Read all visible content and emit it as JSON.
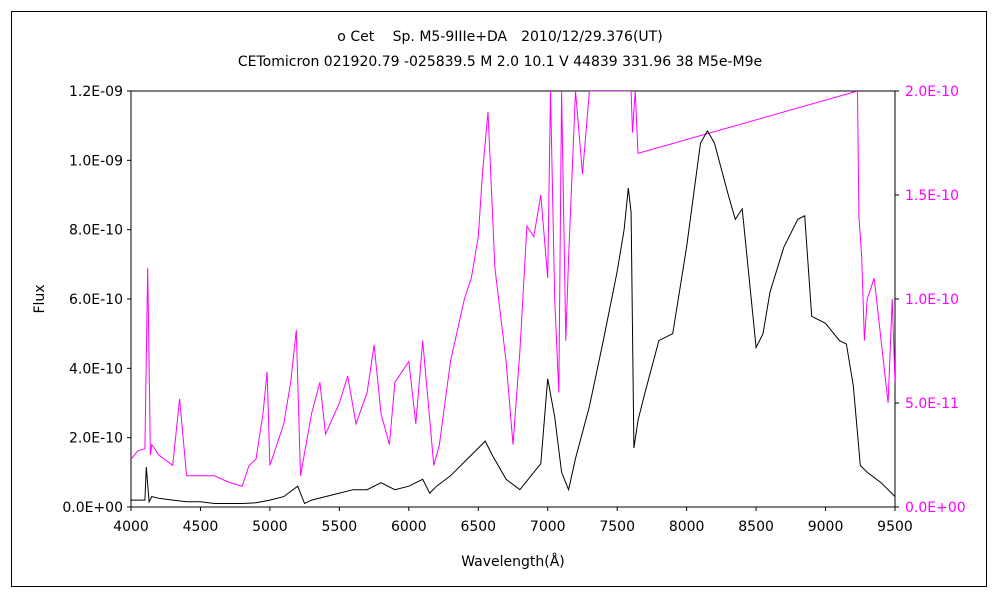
{
  "chart_data": {
    "type": "line",
    "title": "ο Cet　 Sp. M5-9IIIe+DA　2010/12/29.376(UT)",
    "subtitle": "CETomicron 021920.79 -025839.5 M 2.0 10.1 V 44839 331.96 38 M5e-M9e",
    "xlabel": "Wavelength(Å)",
    "ylabel": "Flux",
    "xlim": [
      4000,
      9500
    ],
    "ylim": [
      0,
      1.2e-09
    ],
    "y2lim": [
      0,
      2e-10
    ],
    "x_ticks": [
      4000,
      4500,
      5000,
      5500,
      6000,
      6500,
      7000,
      7500,
      8000,
      8500,
      9000,
      9500
    ],
    "x_tick_labels": [
      "4000",
      "4500",
      "5000",
      "5500",
      "6000",
      "6500",
      "7000",
      "7500",
      "8000",
      "8500",
      "9000",
      "9500"
    ],
    "y_ticks": [
      0,
      2e-10,
      4e-10,
      6e-10,
      8e-10,
      1e-09,
      1.2e-09
    ],
    "y_tick_labels": [
      "0.0E+00",
      "2.0E-10",
      "4.0E-10",
      "6.0E-10",
      "8.0E-10",
      "1.0E-09",
      "1.2E-09"
    ],
    "y2_ticks": [
      0,
      5e-11,
      1e-10,
      1.5e-10,
      2e-10
    ],
    "y2_tick_labels": [
      "0.0E+00",
      "5.0E-11",
      "1.0E-10",
      "1.5E-10",
      "2.0E-10"
    ],
    "grid": false,
    "legend": "none",
    "series": [
      {
        "axis": "left",
        "color": "#000000",
        "x": [
          4000,
          4100,
          4110,
          4130,
          4150,
          4200,
          4300,
          4400,
          4500,
          4600,
          4700,
          4800,
          4900,
          5000,
          5100,
          5200,
          5250,
          5300,
          5400,
          5500,
          5600,
          5700,
          5800,
          5900,
          6000,
          6100,
          6150,
          6200,
          6300,
          6400,
          6500,
          6550,
          6600,
          6700,
          6800,
          6900,
          6950,
          7000,
          7050,
          7100,
          7150,
          7200,
          7300,
          7400,
          7500,
          7550,
          7580,
          7600,
          7620,
          7650,
          7700,
          7800,
          7900,
          8000,
          8100,
          8150,
          8200,
          8300,
          8350,
          8400,
          8500,
          8550,
          8600,
          8700,
          8800,
          8850,
          8900,
          9000,
          9100,
          9150,
          9200,
          9250,
          9300,
          9400,
          9500
        ],
        "y": [
          2e-11,
          2e-11,
          1.15e-10,
          1.5e-11,
          3e-11,
          2.5e-11,
          2e-11,
          1.5e-11,
          1.5e-11,
          1e-11,
          1e-11,
          1e-11,
          1.2e-11,
          2e-11,
          3e-11,
          6e-11,
          1e-11,
          2e-11,
          3e-11,
          4e-11,
          5e-11,
          5e-11,
          7e-11,
          5e-11,
          6e-11,
          8e-11,
          4e-11,
          6e-11,
          9e-11,
          1.3e-10,
          1.7e-10,
          1.9e-10,
          1.5e-10,
          8e-11,
          5e-11,
          1e-10,
          1.25e-10,
          3.7e-10,
          2.6e-10,
          1e-10,
          5e-11,
          1.4e-10,
          2.9e-10,
          4.8e-10,
          6.8e-10,
          8e-10,
          9.2e-10,
          8.5e-10,
          1.7e-10,
          2.5e-10,
          3.3e-10,
          4.8e-10,
          5e-10,
          7.5e-10,
          1.05e-09,
          1.085e-09,
          1.05e-09,
          9e-10,
          8.3e-10,
          8.6e-10,
          4.6e-10,
          5e-10,
          6.2e-10,
          7.5e-10,
          8.3e-10,
          8.4e-10,
          5.5e-10,
          5.3e-10,
          4.8e-10,
          4.7e-10,
          3.5e-10,
          1.2e-10,
          1e-10,
          7e-11,
          3e-11
        ]
      },
      {
        "axis": "right",
        "color": "#ff00ff",
        "x": [
          4000,
          4050,
          4100,
          4120,
          4140,
          4150,
          4200,
          4300,
          4350,
          4400,
          4500,
          4600,
          4700,
          4800,
          4850,
          4900,
          4950,
          4980,
          5000,
          5050,
          5100,
          5150,
          5190,
          5220,
          5300,
          5360,
          5400,
          5500,
          5560,
          5620,
          5700,
          5750,
          5800,
          5860,
          5900,
          5950,
          6000,
          6050,
          6100,
          6180,
          6220,
          6300,
          6400,
          6450,
          6500,
          6530,
          6570,
          6620,
          6700,
          6750,
          6800,
          6850,
          6900,
          6950,
          7000,
          7020,
          7050,
          7080,
          7100,
          7130,
          7150,
          7200,
          7250,
          7300,
          7350,
          7400,
          7450,
          7500,
          7550,
          7600,
          7610,
          7630,
          7650,
          9230,
          9240,
          9260,
          9280,
          9300,
          9350,
          9400,
          9450,
          9480,
          9500
        ],
        "y": [
          2.3e-11,
          2.7e-11,
          2.8e-11,
          1.15e-10,
          2.5e-11,
          3e-11,
          2.5e-11,
          2e-11,
          5.2e-11,
          1.5e-11,
          1.5e-11,
          1.5e-11,
          1.2e-11,
          1e-11,
          2e-11,
          2.3e-11,
          4.5e-11,
          6.5e-11,
          2e-11,
          3e-11,
          4e-11,
          6e-11,
          8.5e-11,
          1.5e-11,
          4.5e-11,
          6e-11,
          3.5e-11,
          5e-11,
          6.3e-11,
          4e-11,
          5.5e-11,
          7.8e-11,
          4.5e-11,
          3e-11,
          6e-11,
          6.5e-11,
          7e-11,
          4e-11,
          8e-11,
          2e-11,
          3e-11,
          7e-11,
          1e-10,
          1.1e-10,
          1.3e-10,
          1.6e-10,
          1.9e-10,
          1.15e-10,
          7e-11,
          3e-11,
          7.5e-11,
          1.35e-10,
          1.3e-10,
          1.5e-10,
          1.1e-10,
          2e-10,
          1e-10,
          5.5e-11,
          2e-10,
          8e-11,
          1.2e-10,
          2e-10,
          1.6e-10,
          2e-10,
          2e-10,
          2e-10,
          2e-10,
          2e-10,
          2e-10,
          2e-10,
          1.8e-10,
          2e-10,
          1.7e-10,
          2e-10,
          1.4e-10,
          1.2e-10,
          8e-11,
          1e-10,
          1.1e-10,
          8e-11,
          5e-11,
          1e-10,
          6e-11
        ]
      }
    ]
  }
}
